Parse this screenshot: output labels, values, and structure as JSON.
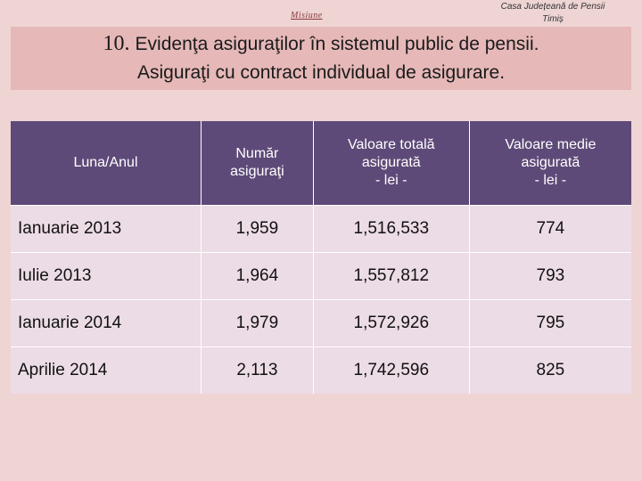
{
  "header": {
    "misiune": "Misiune",
    "org_line1": "Casa Județeană de Pensii",
    "org_line2": "Timiș"
  },
  "title": {
    "number": "10.",
    "line1": "Evidenţa asiguraţilor în sistemul public de pensii.",
    "line2": "Asiguraţi cu contract individual de asigurare."
  },
  "table": {
    "columns": [
      {
        "lines": [
          "Luna/Anul"
        ]
      },
      {
        "lines": [
          "Număr",
          "asiguraţi"
        ]
      },
      {
        "lines": [
          "Valoare totală",
          "asigurată",
          "- lei -"
        ]
      },
      {
        "lines": [
          "Valoare medie",
          "asigurată",
          "- lei -"
        ]
      }
    ],
    "rows": [
      {
        "month": "Ianuarie 2013",
        "count": "1,959",
        "total": "1,516,533",
        "average": "774"
      },
      {
        "month": "Iulie 2013",
        "count": "1,964",
        "total": "1,557,812",
        "average": "793"
      },
      {
        "month": "Ianuarie 2014",
        "count": "1,979",
        "total": "1,572,926",
        "average": "795"
      },
      {
        "month": "Aprilie 2014",
        "count": "2,113",
        "total": "1,742,596",
        "average": "825"
      }
    ]
  }
}
